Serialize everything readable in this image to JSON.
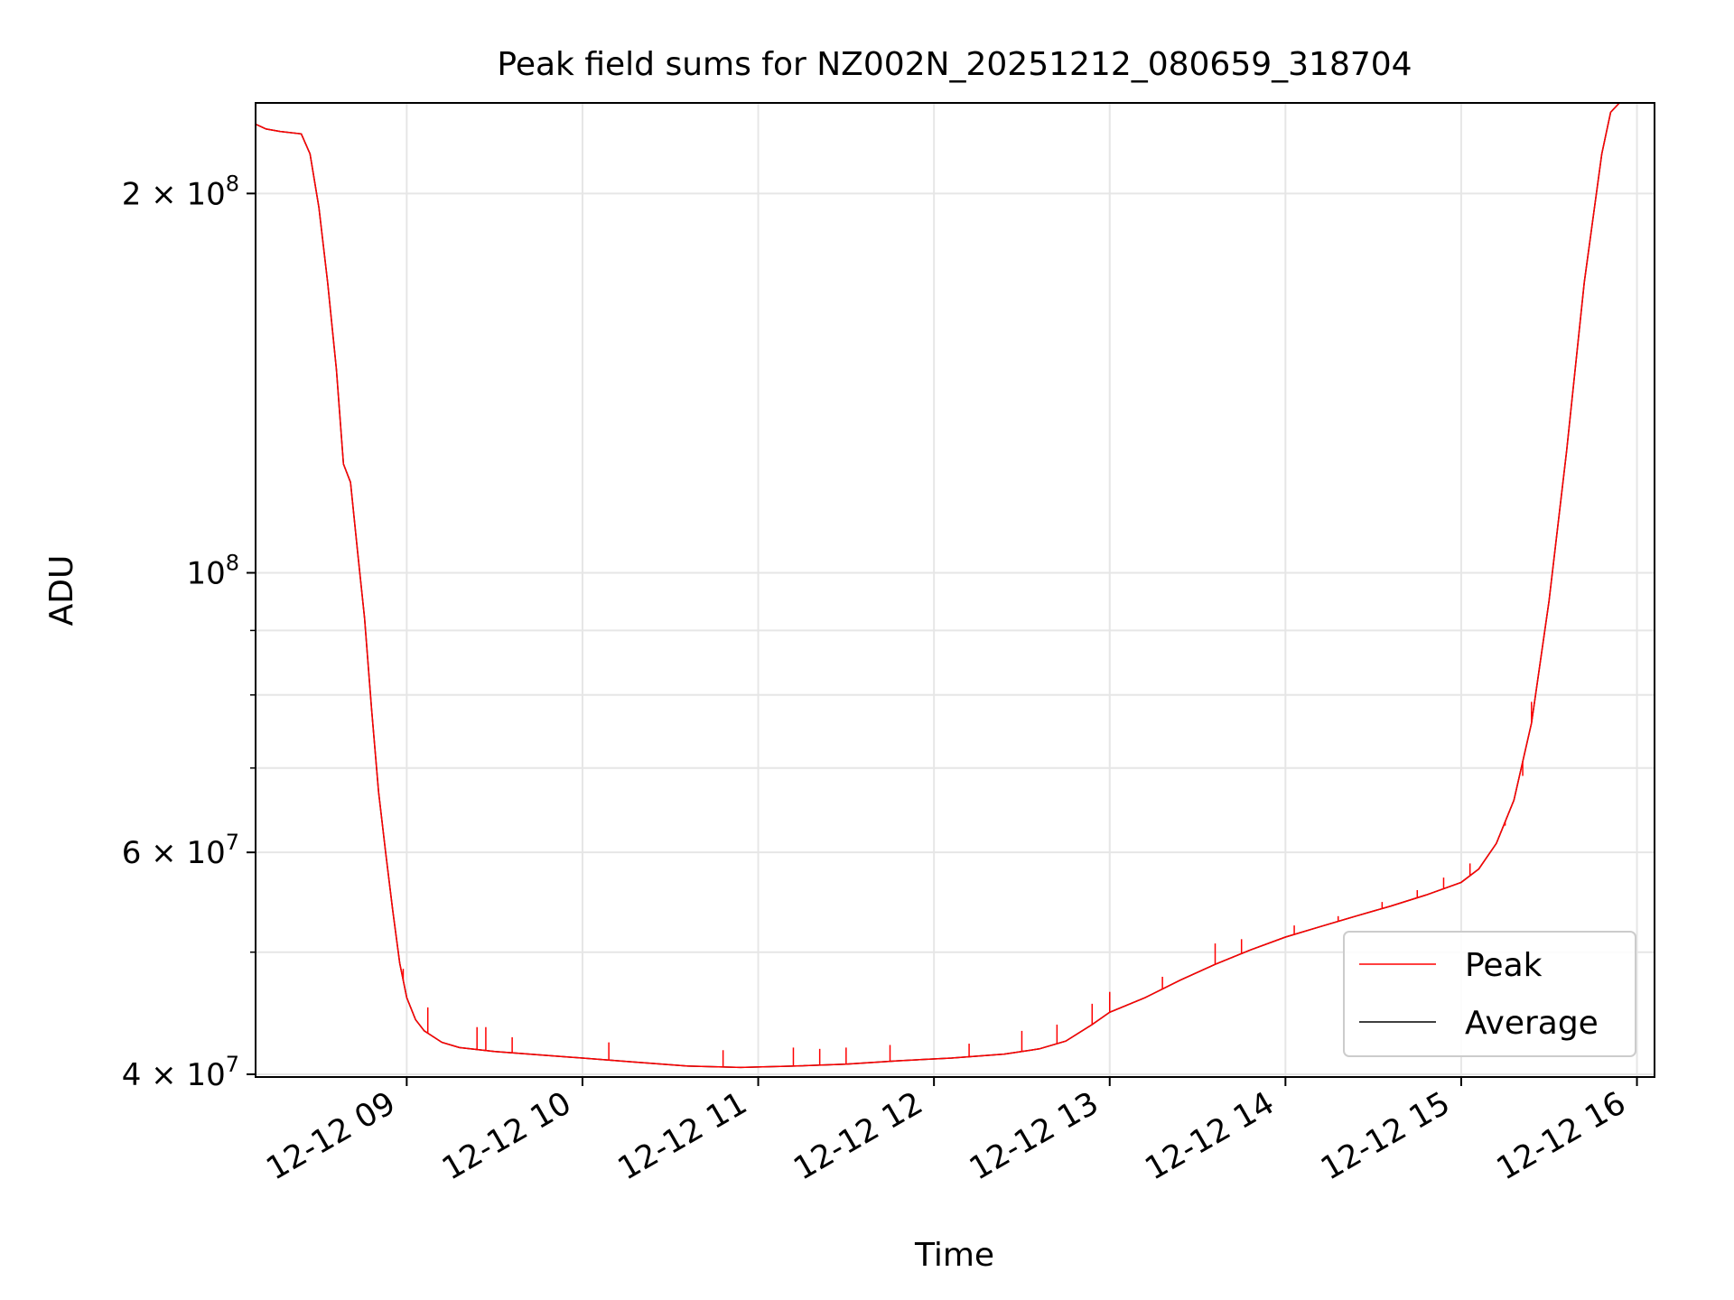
{
  "chart_data": {
    "type": "line",
    "title": "Peak field sums for NZ002N_20251212_080659_318704",
    "xlabel": "Time",
    "ylabel": "ADU",
    "yscale": "log",
    "ylim": [
      39800000,
      236000000
    ],
    "xlim_hours": [
      8.14,
      16.1
    ],
    "x_ticks": [
      {
        "hour": 9,
        "label": "12-12 09"
      },
      {
        "hour": 10,
        "label": "12-12 10"
      },
      {
        "hour": 11,
        "label": "12-12 11"
      },
      {
        "hour": 12,
        "label": "12-12 12"
      },
      {
        "hour": 13,
        "label": "12-12 13"
      },
      {
        "hour": 14,
        "label": "12-12 14"
      },
      {
        "hour": 15,
        "label": "12-12 15"
      },
      {
        "hour": 16,
        "label": "12-12 16"
      }
    ],
    "y_major_ticks": [
      {
        "value": 40000000,
        "mantissa": "4",
        "base": "10",
        "exp": "7"
      },
      {
        "value": 60000000,
        "mantissa": "6",
        "base": "10",
        "exp": "7"
      },
      {
        "value": 100000000,
        "mantissa": "",
        "base": "10",
        "exp": "8"
      },
      {
        "value": 200000000,
        "mantissa": "2",
        "base": "10",
        "exp": "8"
      }
    ],
    "y_minor_ticks": [
      50000000,
      70000000,
      80000000,
      90000000
    ],
    "grid": true,
    "legend": {
      "position": "lower-right",
      "entries": [
        "Peak",
        "Average"
      ]
    },
    "series": [
      {
        "name": "Average",
        "color": "#000000",
        "points": [
          [
            8.14,
            227000000
          ],
          [
            8.2,
            225000000
          ],
          [
            8.28,
            224000000
          ],
          [
            8.4,
            223000000
          ],
          [
            8.45,
            215000000
          ],
          [
            8.5,
            195000000
          ],
          [
            8.55,
            170000000
          ],
          [
            8.6,
            145000000
          ],
          [
            8.64,
            122000000
          ],
          [
            8.68,
            118000000
          ],
          [
            8.72,
            104000000
          ],
          [
            8.76,
            92000000
          ],
          [
            8.8,
            78000000
          ],
          [
            8.84,
            67000000
          ],
          [
            8.88,
            60000000
          ],
          [
            8.92,
            54000000
          ],
          [
            8.96,
            49000000
          ],
          [
            9.0,
            46000000
          ],
          [
            9.05,
            44200000
          ],
          [
            9.1,
            43300000
          ],
          [
            9.2,
            42400000
          ],
          [
            9.3,
            42000000
          ],
          [
            9.5,
            41700000
          ],
          [
            9.8,
            41400000
          ],
          [
            10.0,
            41200000
          ],
          [
            10.3,
            40900000
          ],
          [
            10.6,
            40600000
          ],
          [
            10.9,
            40500000
          ],
          [
            11.2,
            40600000
          ],
          [
            11.5,
            40750000
          ],
          [
            11.8,
            41000000
          ],
          [
            12.1,
            41200000
          ],
          [
            12.4,
            41500000
          ],
          [
            12.6,
            41900000
          ],
          [
            12.75,
            42500000
          ],
          [
            12.9,
            43800000
          ],
          [
            13.0,
            44800000
          ],
          [
            13.2,
            46000000
          ],
          [
            13.4,
            47500000
          ],
          [
            13.6,
            48900000
          ],
          [
            13.8,
            50200000
          ],
          [
            14.0,
            51400000
          ],
          [
            14.2,
            52400000
          ],
          [
            14.4,
            53400000
          ],
          [
            14.6,
            54400000
          ],
          [
            14.8,
            55500000
          ],
          [
            15.0,
            56800000
          ],
          [
            15.1,
            58200000
          ],
          [
            15.2,
            61000000
          ],
          [
            15.3,
            66000000
          ],
          [
            15.4,
            76000000
          ],
          [
            15.5,
            95000000
          ],
          [
            15.6,
            125000000
          ],
          [
            15.7,
            170000000
          ],
          [
            15.8,
            215000000
          ],
          [
            15.85,
            232000000
          ],
          [
            15.9,
            236000000
          ],
          [
            16.1,
            236000000
          ]
        ]
      },
      {
        "name": "Peak",
        "color": "#ff0000",
        "spikes": [
          [
            8.98,
            48500000
          ],
          [
            9.12,
            45200000
          ],
          [
            9.4,
            43600000
          ],
          [
            9.45,
            43600000
          ],
          [
            9.6,
            42800000
          ],
          [
            10.15,
            42400000
          ],
          [
            10.8,
            41800000
          ],
          [
            11.2,
            42000000
          ],
          [
            11.35,
            41900000
          ],
          [
            11.5,
            42000000
          ],
          [
            11.75,
            42200000
          ],
          [
            12.2,
            42300000
          ],
          [
            12.5,
            43300000
          ],
          [
            12.7,
            43800000
          ],
          [
            12.9,
            45500000
          ],
          [
            13.0,
            46500000
          ],
          [
            13.3,
            47800000
          ],
          [
            13.6,
            50800000
          ],
          [
            13.75,
            51200000
          ],
          [
            14.05,
            52500000
          ],
          [
            14.3,
            53400000
          ],
          [
            14.55,
            54800000
          ],
          [
            14.75,
            56000000
          ],
          [
            14.9,
            57300000
          ],
          [
            15.05,
            58800000
          ],
          [
            15.25,
            63000000
          ],
          [
            15.35,
            69000000
          ],
          [
            15.4,
            79000000
          ]
        ]
      }
    ]
  }
}
